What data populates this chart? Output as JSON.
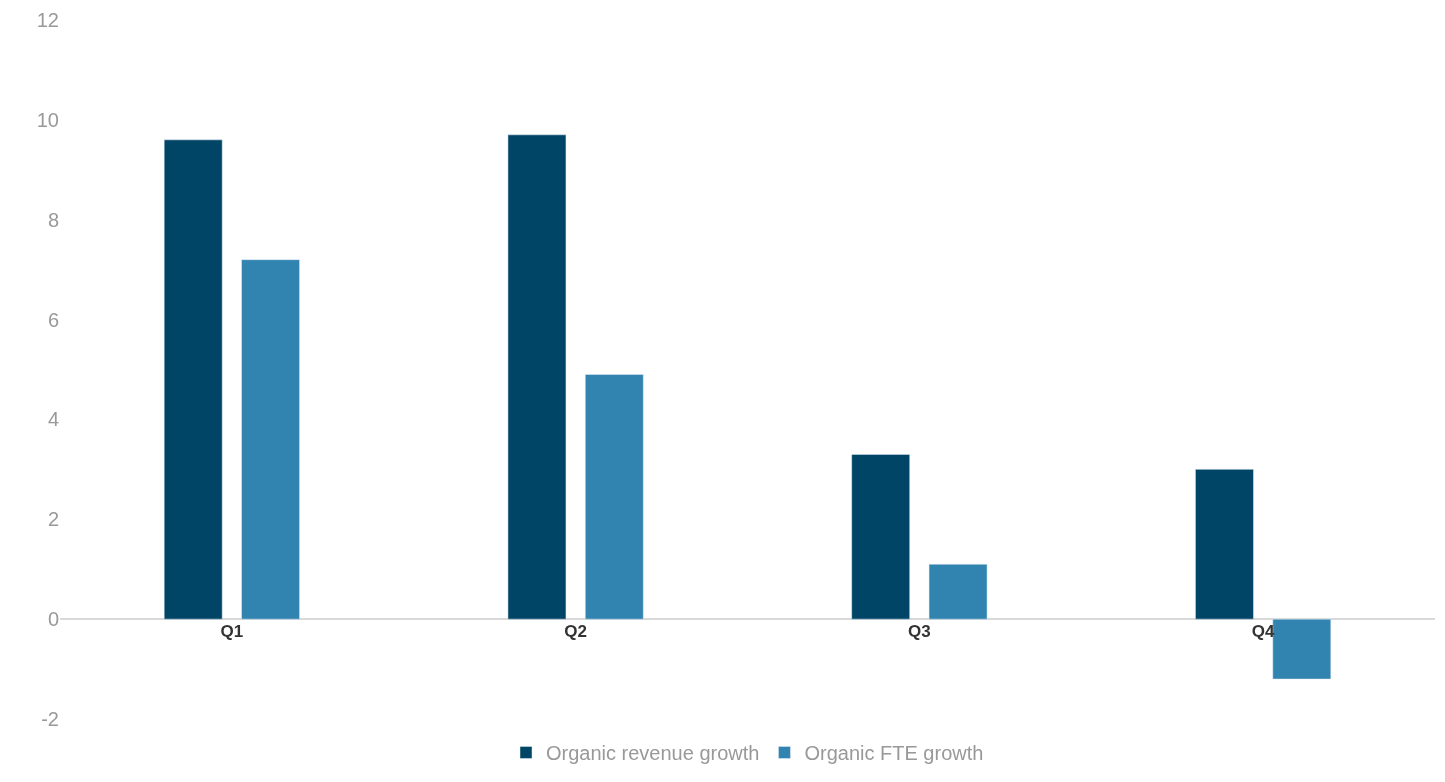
{
  "chart_data": {
    "type": "bar",
    "categories": [
      "Q1",
      "Q2",
      "Q3",
      "Q4"
    ],
    "series": [
      {
        "name": "Organic revenue growth",
        "color": "#004466",
        "values": [
          9.6,
          9.7,
          3.3,
          3.0
        ]
      },
      {
        "name": "Organic FTE growth",
        "color": "#3284b0",
        "values": [
          7.2,
          4.9,
          1.1,
          -1.2
        ]
      }
    ],
    "ylim": [
      -2,
      12
    ],
    "yticks": [
      -2,
      0,
      2,
      4,
      6,
      8,
      10,
      12
    ],
    "legend": "bottom"
  }
}
